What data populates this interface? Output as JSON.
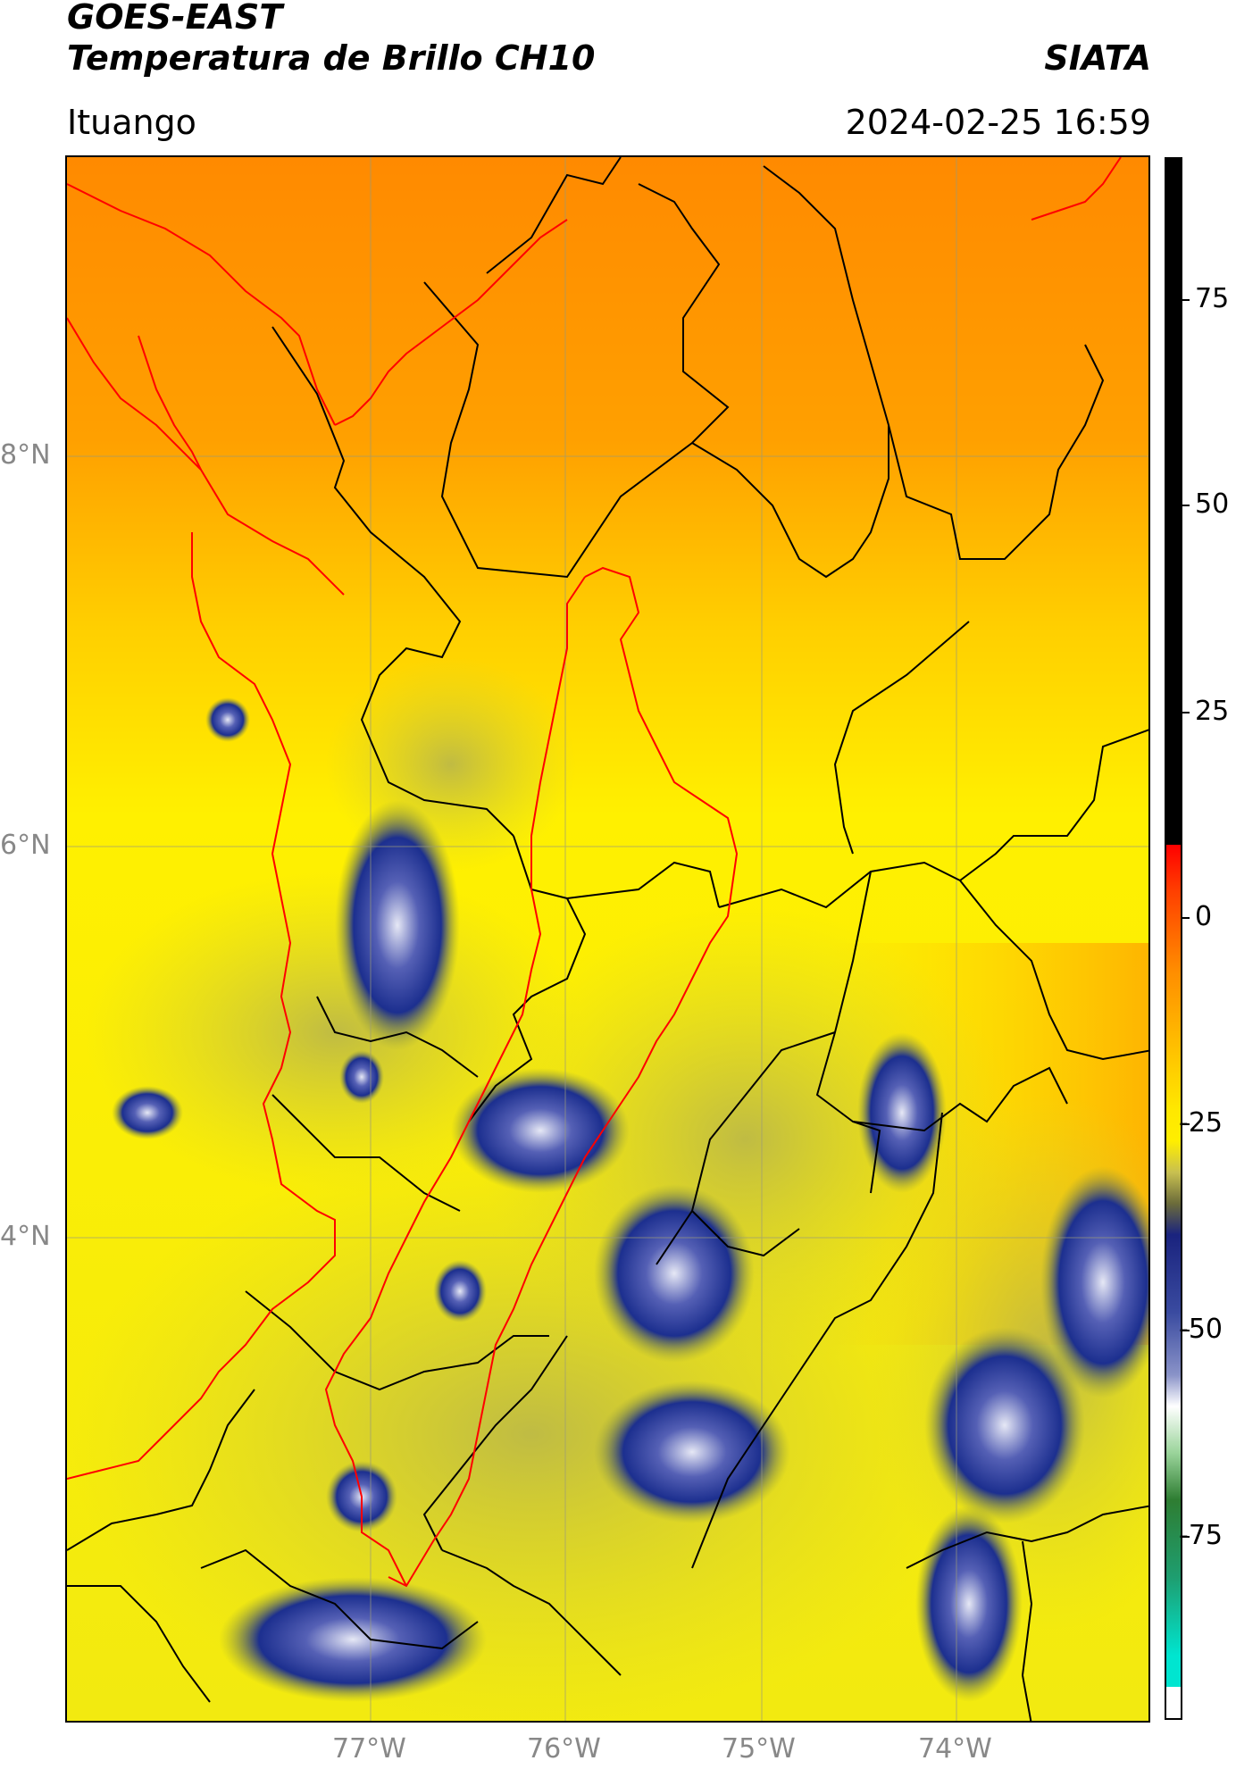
{
  "header": {
    "title_line1": "GOES-EAST",
    "title_line2": "Temperatura de Brillo CH10",
    "brand": "SIATA",
    "location": "Ituango",
    "timestamp": "2024-02-25 16:59"
  },
  "map": {
    "lat_labels": [
      "8°N",
      "6°N",
      "4°N"
    ],
    "lon_labels": [
      "77°W",
      "76°W",
      "75°W",
      "74°W"
    ],
    "colors": {
      "warm_orange": "#ff8c00",
      "mid_orange": "#ffb300",
      "yellow": "#ffef00",
      "olive": "#c9c24a",
      "navy": "#1c2f8f",
      "pale": "#dcdff0",
      "border_red": "#ff0000",
      "border_black": "#000000"
    }
  },
  "colorbar": {
    "labels": [
      "75",
      "50",
      "25",
      "0",
      "-25",
      "-50",
      "-75"
    ],
    "colors": [
      "#000000",
      "#ff0000",
      "#ff8c00",
      "#ffe800",
      "#6b6b3a",
      "#1a237e",
      "#ffffff",
      "#2e7d32",
      "#00e5d0"
    ]
  }
}
